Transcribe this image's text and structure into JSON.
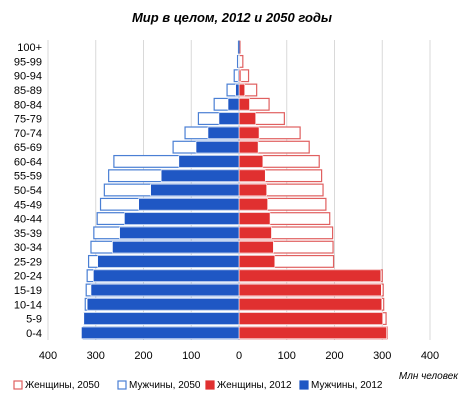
{
  "chart_data": {
    "type": "bar",
    "orientation": "horizontal",
    "title": "Мир в целом, 2012 и 2050 годы",
    "unit_label": "Млн человек",
    "categories": [
      "100+",
      "95-99",
      "90-94",
      "85-89",
      "80-84",
      "75-79",
      "70-74",
      "65-69",
      "60-64",
      "55-59",
      "50-54",
      "45-49",
      "40-44",
      "35-39",
      "30-34",
      "25-29",
      "20-24",
      "15-19",
      "10-14",
      "5-9",
      "0-4"
    ],
    "x_tick_labels": [
      "400",
      "300",
      "200",
      "100",
      "0",
      "100",
      "200",
      "300",
      "400"
    ],
    "xlim": [
      -400,
      400
    ],
    "grid": true,
    "legend_position": "bottom",
    "series": [
      {
        "name": "Женщины, 2050",
        "side": "right",
        "style": "outline",
        "color": "#e06060",
        "values": [
          2,
          8,
          20,
          37,
          63,
          95,
          128,
          147,
          168,
          173,
          176,
          182,
          190,
          196,
          197,
          198,
          300,
          302,
          303,
          308,
          310
        ]
      },
      {
        "name": "Мужчины, 2050",
        "side": "left",
        "style": "outline",
        "color": "#4a7fd4",
        "values": [
          1,
          3,
          10,
          25,
          52,
          85,
          113,
          138,
          262,
          273,
          282,
          290,
          297,
          304,
          310,
          315,
          318,
          320,
          322,
          324,
          326
        ]
      },
      {
        "name": "Женщины, 2012",
        "side": "right",
        "style": "filled",
        "color": "#e03030",
        "values": [
          0,
          1,
          4,
          12,
          22,
          35,
          42,
          40,
          50,
          55,
          58,
          60,
          65,
          68,
          72,
          75,
          297,
          298,
          299,
          301,
          309
        ]
      },
      {
        "name": "Мужчины, 2012",
        "side": "left",
        "style": "filled",
        "color": "#1f57c4",
        "values": [
          0,
          1,
          2,
          7,
          23,
          42,
          65,
          90,
          126,
          163,
          185,
          210,
          240,
          250,
          265,
          296,
          305,
          310,
          318,
          325,
          330
        ]
      }
    ]
  }
}
